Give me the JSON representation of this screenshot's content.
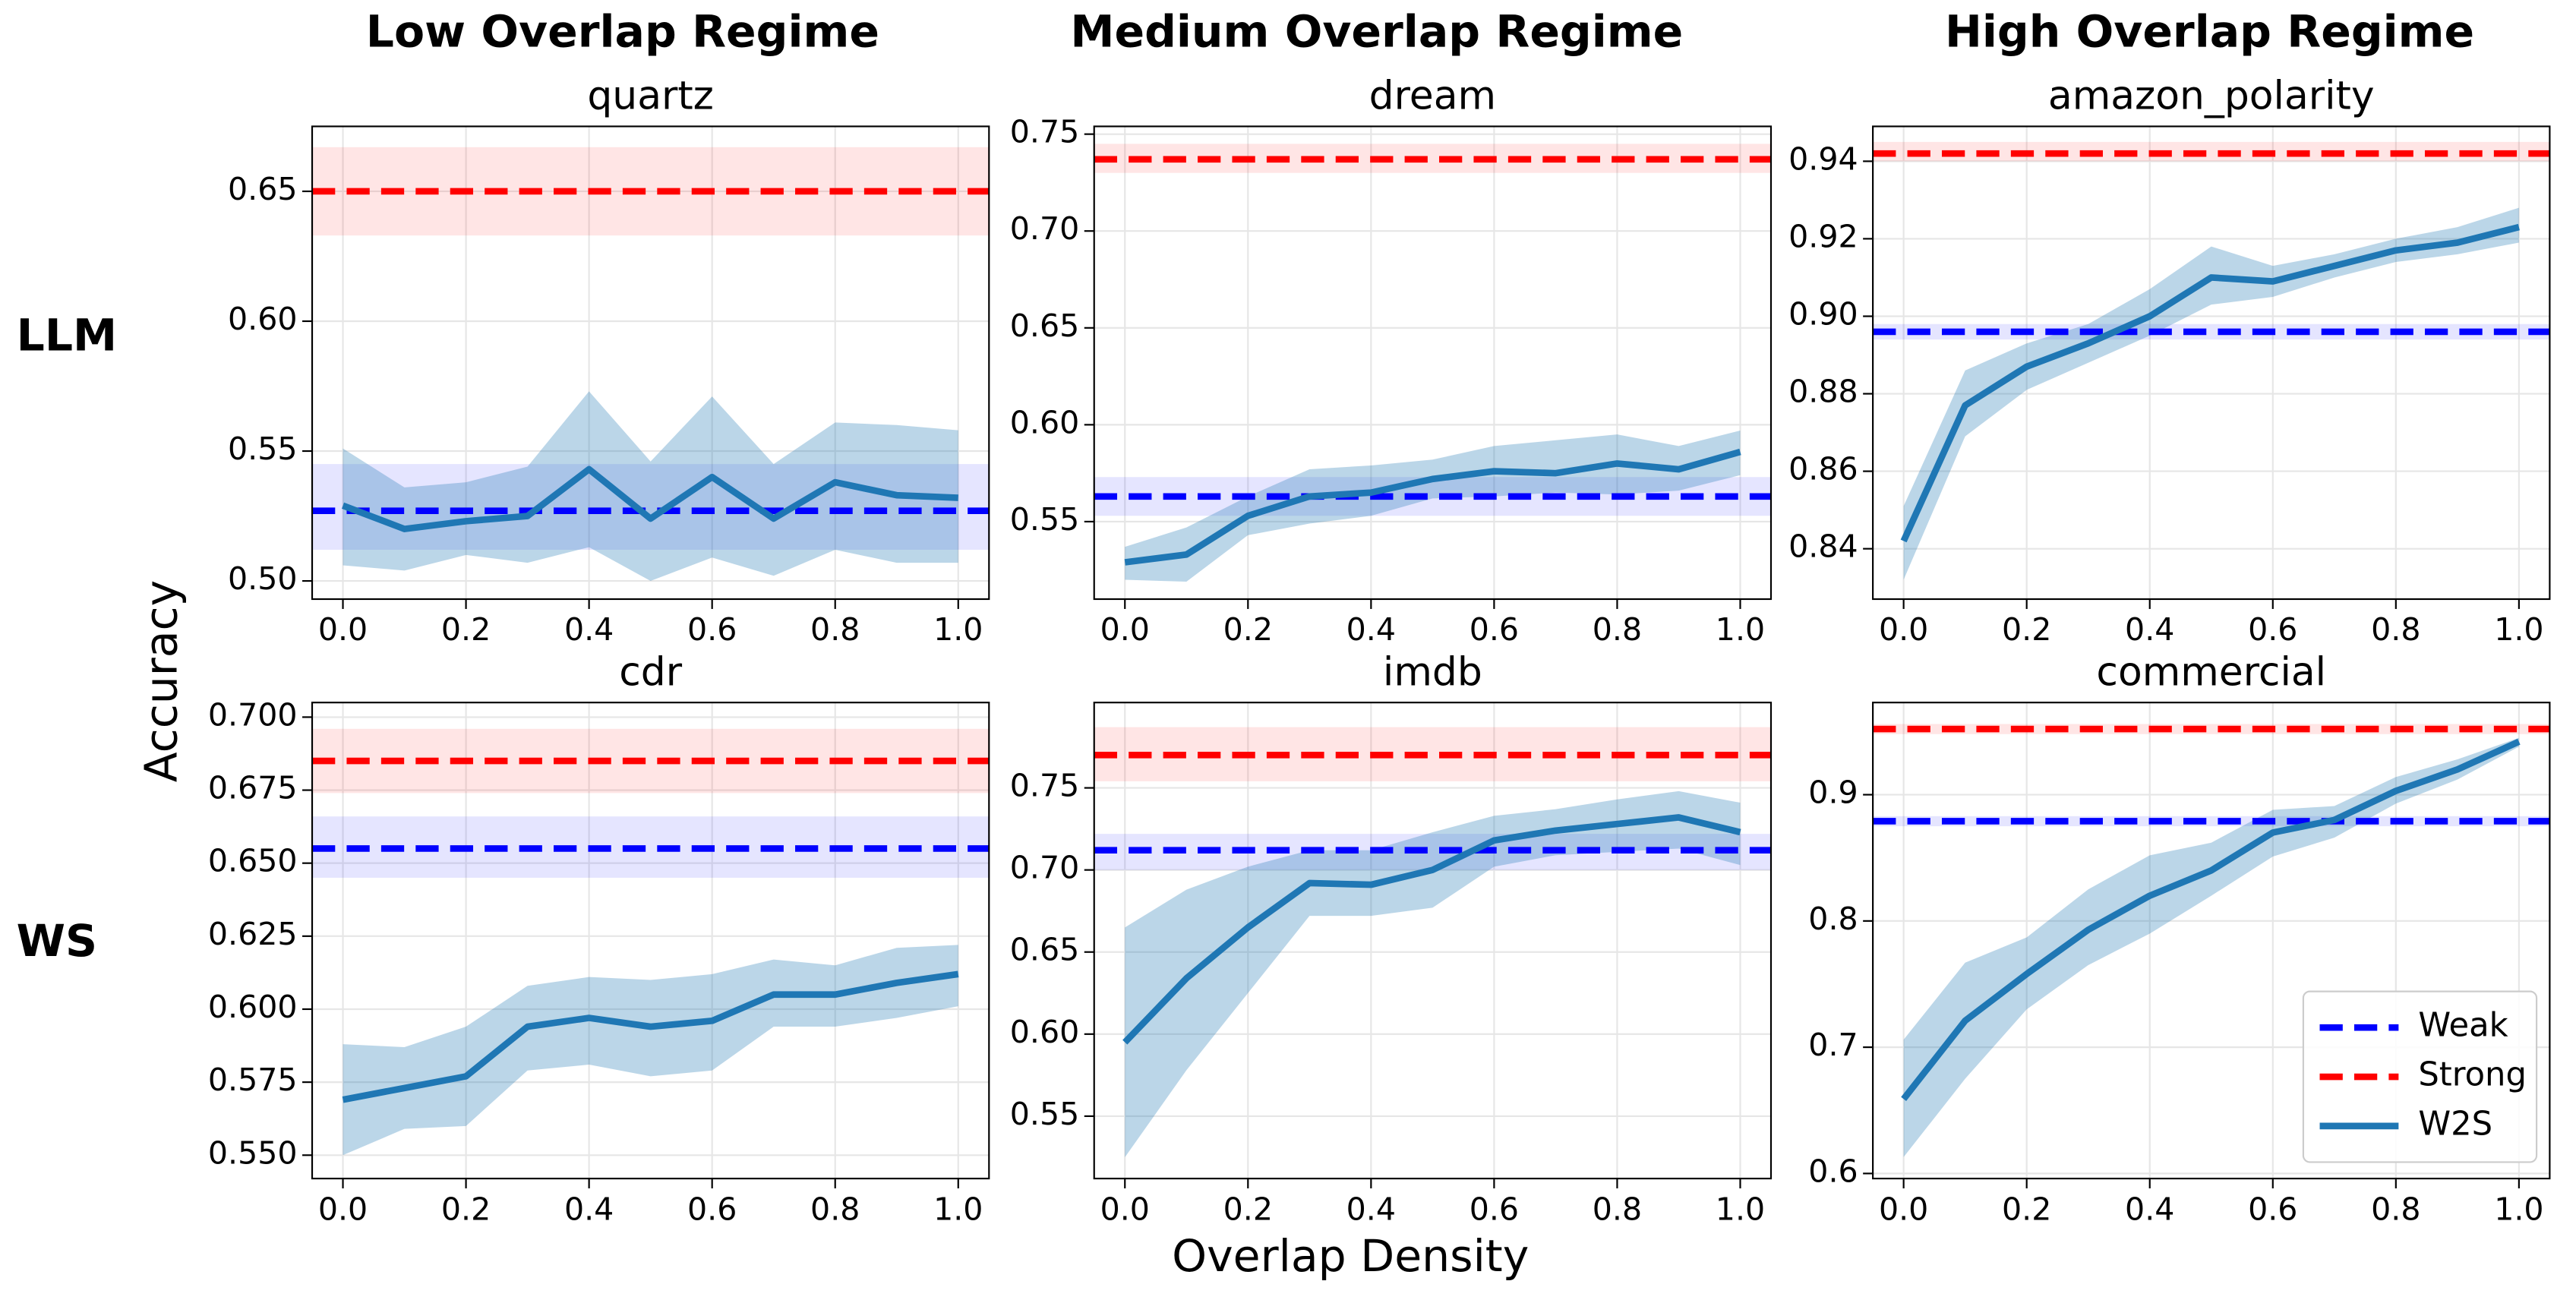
{
  "figure": {
    "column_titles": [
      "Low Overlap Regime",
      "Medium Overlap Regime",
      "High Overlap Regime"
    ],
    "row_titles": [
      "LLM",
      "WS"
    ],
    "xlabel": "Overlap Density",
    "ylabel": "Accuracy"
  },
  "chart_data": [
    {
      "type": "line",
      "title": "quartz",
      "grid": true,
      "x": [
        0,
        0.1,
        0.2,
        0.3,
        0.4,
        0.5,
        0.6,
        0.7,
        0.8,
        0.9,
        1.0
      ],
      "xlim": [
        -0.05,
        1.05
      ],
      "xticks": [
        {
          "value": 0,
          "label": "0.0"
        },
        0.2,
        0.4,
        0.6,
        0.8,
        {
          "value": 1,
          "label": "1.0"
        }
      ],
      "ylim": [
        0.493,
        0.675
      ],
      "yticks": [
        {
          "value": 0.5,
          "label": "0.50"
        },
        0.55,
        {
          "value": 0.6,
          "label": "0.60"
        },
        0.65
      ],
      "hlines": [
        {
          "color": "#0000ff",
          "value": 0.527,
          "lower": 0.512,
          "upper": 0.545
        },
        {
          "color": "#ff0000",
          "value": 0.65,
          "lower": 0.633,
          "upper": 0.667
        }
      ],
      "series": [
        {
          "color": "#1f77b4",
          "values": [
            0.529,
            0.52,
            0.523,
            0.525,
            0.543,
            0.524,
            0.54,
            0.524,
            0.538,
            0.533,
            0.532
          ],
          "lower": [
            0.506,
            0.504,
            0.51,
            0.507,
            0.513,
            0.5,
            0.509,
            0.502,
            0.512,
            0.507,
            0.507
          ],
          "upper": [
            0.551,
            0.536,
            0.538,
            0.544,
            0.573,
            0.546,
            0.571,
            0.545,
            0.561,
            0.56,
            0.558
          ]
        }
      ]
    },
    {
      "type": "line",
      "title": "dream",
      "grid": true,
      "x": [
        0,
        0.1,
        0.2,
        0.3,
        0.4,
        0.5,
        0.6,
        0.7,
        0.8,
        0.9,
        1.0
      ],
      "xlim": [
        -0.05,
        1.05
      ],
      "xticks": [
        {
          "value": 0,
          "label": "0.0"
        },
        0.2,
        0.4,
        0.6,
        0.8,
        {
          "value": 1,
          "label": "1.0"
        }
      ],
      "ylim": [
        0.51,
        0.754
      ],
      "yticks": [
        0.55,
        {
          "value": 0.6,
          "label": "0.60"
        },
        0.65,
        {
          "value": 0.7,
          "label": "0.70"
        },
        0.75
      ],
      "hlines": [
        {
          "color": "#0000ff",
          "value": 0.563,
          "lower": 0.553,
          "upper": 0.573
        },
        {
          "color": "#ff0000",
          "value": 0.737,
          "lower": 0.73,
          "upper": 0.745
        }
      ],
      "series": [
        {
          "color": "#1f77b4",
          "values": [
            0.529,
            0.533,
            0.553,
            0.563,
            0.565,
            0.572,
            0.576,
            0.575,
            0.58,
            0.577,
            0.586
          ],
          "lower": [
            0.52,
            0.519,
            0.543,
            0.549,
            0.553,
            0.562,
            0.563,
            0.565,
            0.564,
            0.566,
            0.574
          ],
          "upper": [
            0.537,
            0.547,
            0.563,
            0.577,
            0.579,
            0.582,
            0.589,
            0.592,
            0.595,
            0.589,
            0.597
          ]
        }
      ]
    },
    {
      "type": "line",
      "title": "amazon_polarity",
      "grid": true,
      "x": [
        0,
        0.1,
        0.2,
        0.3,
        0.4,
        0.5,
        0.6,
        0.7,
        0.8,
        0.9,
        1.0
      ],
      "xlim": [
        -0.05,
        1.05
      ],
      "xticks": [
        {
          "value": 0,
          "label": "0.0"
        },
        0.2,
        0.4,
        0.6,
        0.8,
        {
          "value": 1,
          "label": "1.0"
        }
      ],
      "ylim": [
        0.827,
        0.949
      ],
      "yticks": [
        0.84,
        0.86,
        0.88,
        {
          "value": 0.9,
          "label": "0.90"
        },
        0.92,
        0.94
      ],
      "hlines": [
        {
          "color": "#0000ff",
          "value": 0.896,
          "lower": 0.894,
          "upper": 0.898
        },
        {
          "color": "#ff0000",
          "value": 0.942,
          "lower": 0.94,
          "upper": 0.945
        }
      ],
      "series": [
        {
          "color": "#1f77b4",
          "values": [
            0.842,
            0.877,
            0.887,
            0.893,
            0.9,
            0.91,
            0.909,
            0.913,
            0.917,
            0.919,
            0.923
          ],
          "lower": [
            0.832,
            0.869,
            0.881,
            0.888,
            0.895,
            0.903,
            0.905,
            0.91,
            0.914,
            0.916,
            0.919
          ],
          "upper": [
            0.851,
            0.886,
            0.893,
            0.898,
            0.907,
            0.918,
            0.913,
            0.916,
            0.92,
            0.923,
            0.928
          ]
        }
      ]
    },
    {
      "type": "line",
      "title": "cdr",
      "grid": true,
      "x": [
        0,
        0.1,
        0.2,
        0.3,
        0.4,
        0.5,
        0.6,
        0.7,
        0.8,
        0.9,
        1.0
      ],
      "xlim": [
        -0.05,
        1.05
      ],
      "xticks": [
        {
          "value": 0,
          "label": "0.0"
        },
        0.2,
        0.4,
        0.6,
        0.8,
        {
          "value": 1,
          "label": "1.0"
        }
      ],
      "ylim": [
        0.542,
        0.705
      ],
      "yticks": [
        {
          "value": 0.55,
          "label": "0.550"
        },
        0.575,
        {
          "value": 0.6,
          "label": "0.600"
        },
        0.625,
        {
          "value": 0.65,
          "label": "0.650"
        },
        0.675,
        {
          "value": 0.7,
          "label": "0.700"
        }
      ],
      "hlines": [
        {
          "color": "#0000ff",
          "value": 0.655,
          "lower": 0.645,
          "upper": 0.666
        },
        {
          "color": "#ff0000",
          "value": 0.685,
          "lower": 0.674,
          "upper": 0.696
        }
      ],
      "series": [
        {
          "color": "#1f77b4",
          "values": [
            0.569,
            0.573,
            0.577,
            0.594,
            0.597,
            0.594,
            0.596,
            0.605,
            0.605,
            0.609,
            0.612
          ],
          "lower": [
            0.55,
            0.559,
            0.56,
            0.579,
            0.581,
            0.577,
            0.579,
            0.594,
            0.594,
            0.597,
            0.601
          ],
          "upper": [
            0.588,
            0.587,
            0.594,
            0.608,
            0.611,
            0.61,
            0.612,
            0.617,
            0.615,
            0.621,
            0.622
          ]
        }
      ]
    },
    {
      "type": "line",
      "title": "imdb",
      "grid": true,
      "x": [
        0,
        0.1,
        0.2,
        0.3,
        0.4,
        0.5,
        0.6,
        0.7,
        0.8,
        0.9,
        1.0
      ],
      "xlim": [
        -0.05,
        1.05
      ],
      "xticks": [
        {
          "value": 0,
          "label": "0.0"
        },
        0.2,
        0.4,
        0.6,
        0.8,
        {
          "value": 1,
          "label": "1.0"
        }
      ],
      "ylim": [
        0.512,
        0.802
      ],
      "yticks": [
        0.55,
        {
          "value": 0.6,
          "label": "0.60"
        },
        0.65,
        {
          "value": 0.7,
          "label": "0.70"
        },
        0.75
      ],
      "hlines": [
        {
          "color": "#0000ff",
          "value": 0.712,
          "lower": 0.7,
          "upper": 0.722
        },
        {
          "color": "#ff0000",
          "value": 0.77,
          "lower": 0.754,
          "upper": 0.787
        }
      ],
      "series": [
        {
          "color": "#1f77b4",
          "values": [
            0.595,
            0.634,
            0.665,
            0.692,
            0.691,
            0.7,
            0.718,
            0.724,
            0.728,
            0.732,
            0.723
          ],
          "lower": [
            0.525,
            0.578,
            0.625,
            0.672,
            0.672,
            0.677,
            0.702,
            0.709,
            0.711,
            0.713,
            0.703
          ],
          "upper": [
            0.665,
            0.688,
            0.702,
            0.712,
            0.712,
            0.723,
            0.733,
            0.737,
            0.743,
            0.748,
            0.741
          ]
        }
      ]
    },
    {
      "type": "line",
      "title": "commercial",
      "grid": true,
      "legend": "lower right",
      "x": [
        0,
        0.1,
        0.2,
        0.3,
        0.4,
        0.5,
        0.6,
        0.7,
        0.8,
        0.9,
        1.0
      ],
      "xlim": [
        -0.05,
        1.05
      ],
      "xticks": [
        {
          "value": 0,
          "label": "0.0"
        },
        0.2,
        0.4,
        0.6,
        0.8,
        {
          "value": 1,
          "label": "1.0"
        }
      ],
      "ylim": [
        0.596,
        0.973
      ],
      "yticks": [
        0.6,
        0.7,
        0.8,
        0.9
      ],
      "hlines": [
        {
          "name": "Weak",
          "color": "#0000ff",
          "value": 0.879,
          "lower": 0.875,
          "upper": 0.883
        },
        {
          "name": "Strong",
          "color": "#ff0000",
          "value": 0.952,
          "lower": 0.948,
          "upper": 0.956
        }
      ],
      "series": [
        {
          "name": "W2S",
          "color": "#1f77b4",
          "values": [
            0.659,
            0.721,
            0.758,
            0.793,
            0.82,
            0.84,
            0.87,
            0.88,
            0.903,
            0.92,
            0.942
          ],
          "lower": [
            0.613,
            0.675,
            0.73,
            0.765,
            0.79,
            0.82,
            0.851,
            0.866,
            0.893,
            0.912,
            0.938
          ],
          "upper": [
            0.706,
            0.767,
            0.787,
            0.825,
            0.852,
            0.862,
            0.888,
            0.891,
            0.914,
            0.928,
            0.945
          ]
        }
      ]
    }
  ]
}
